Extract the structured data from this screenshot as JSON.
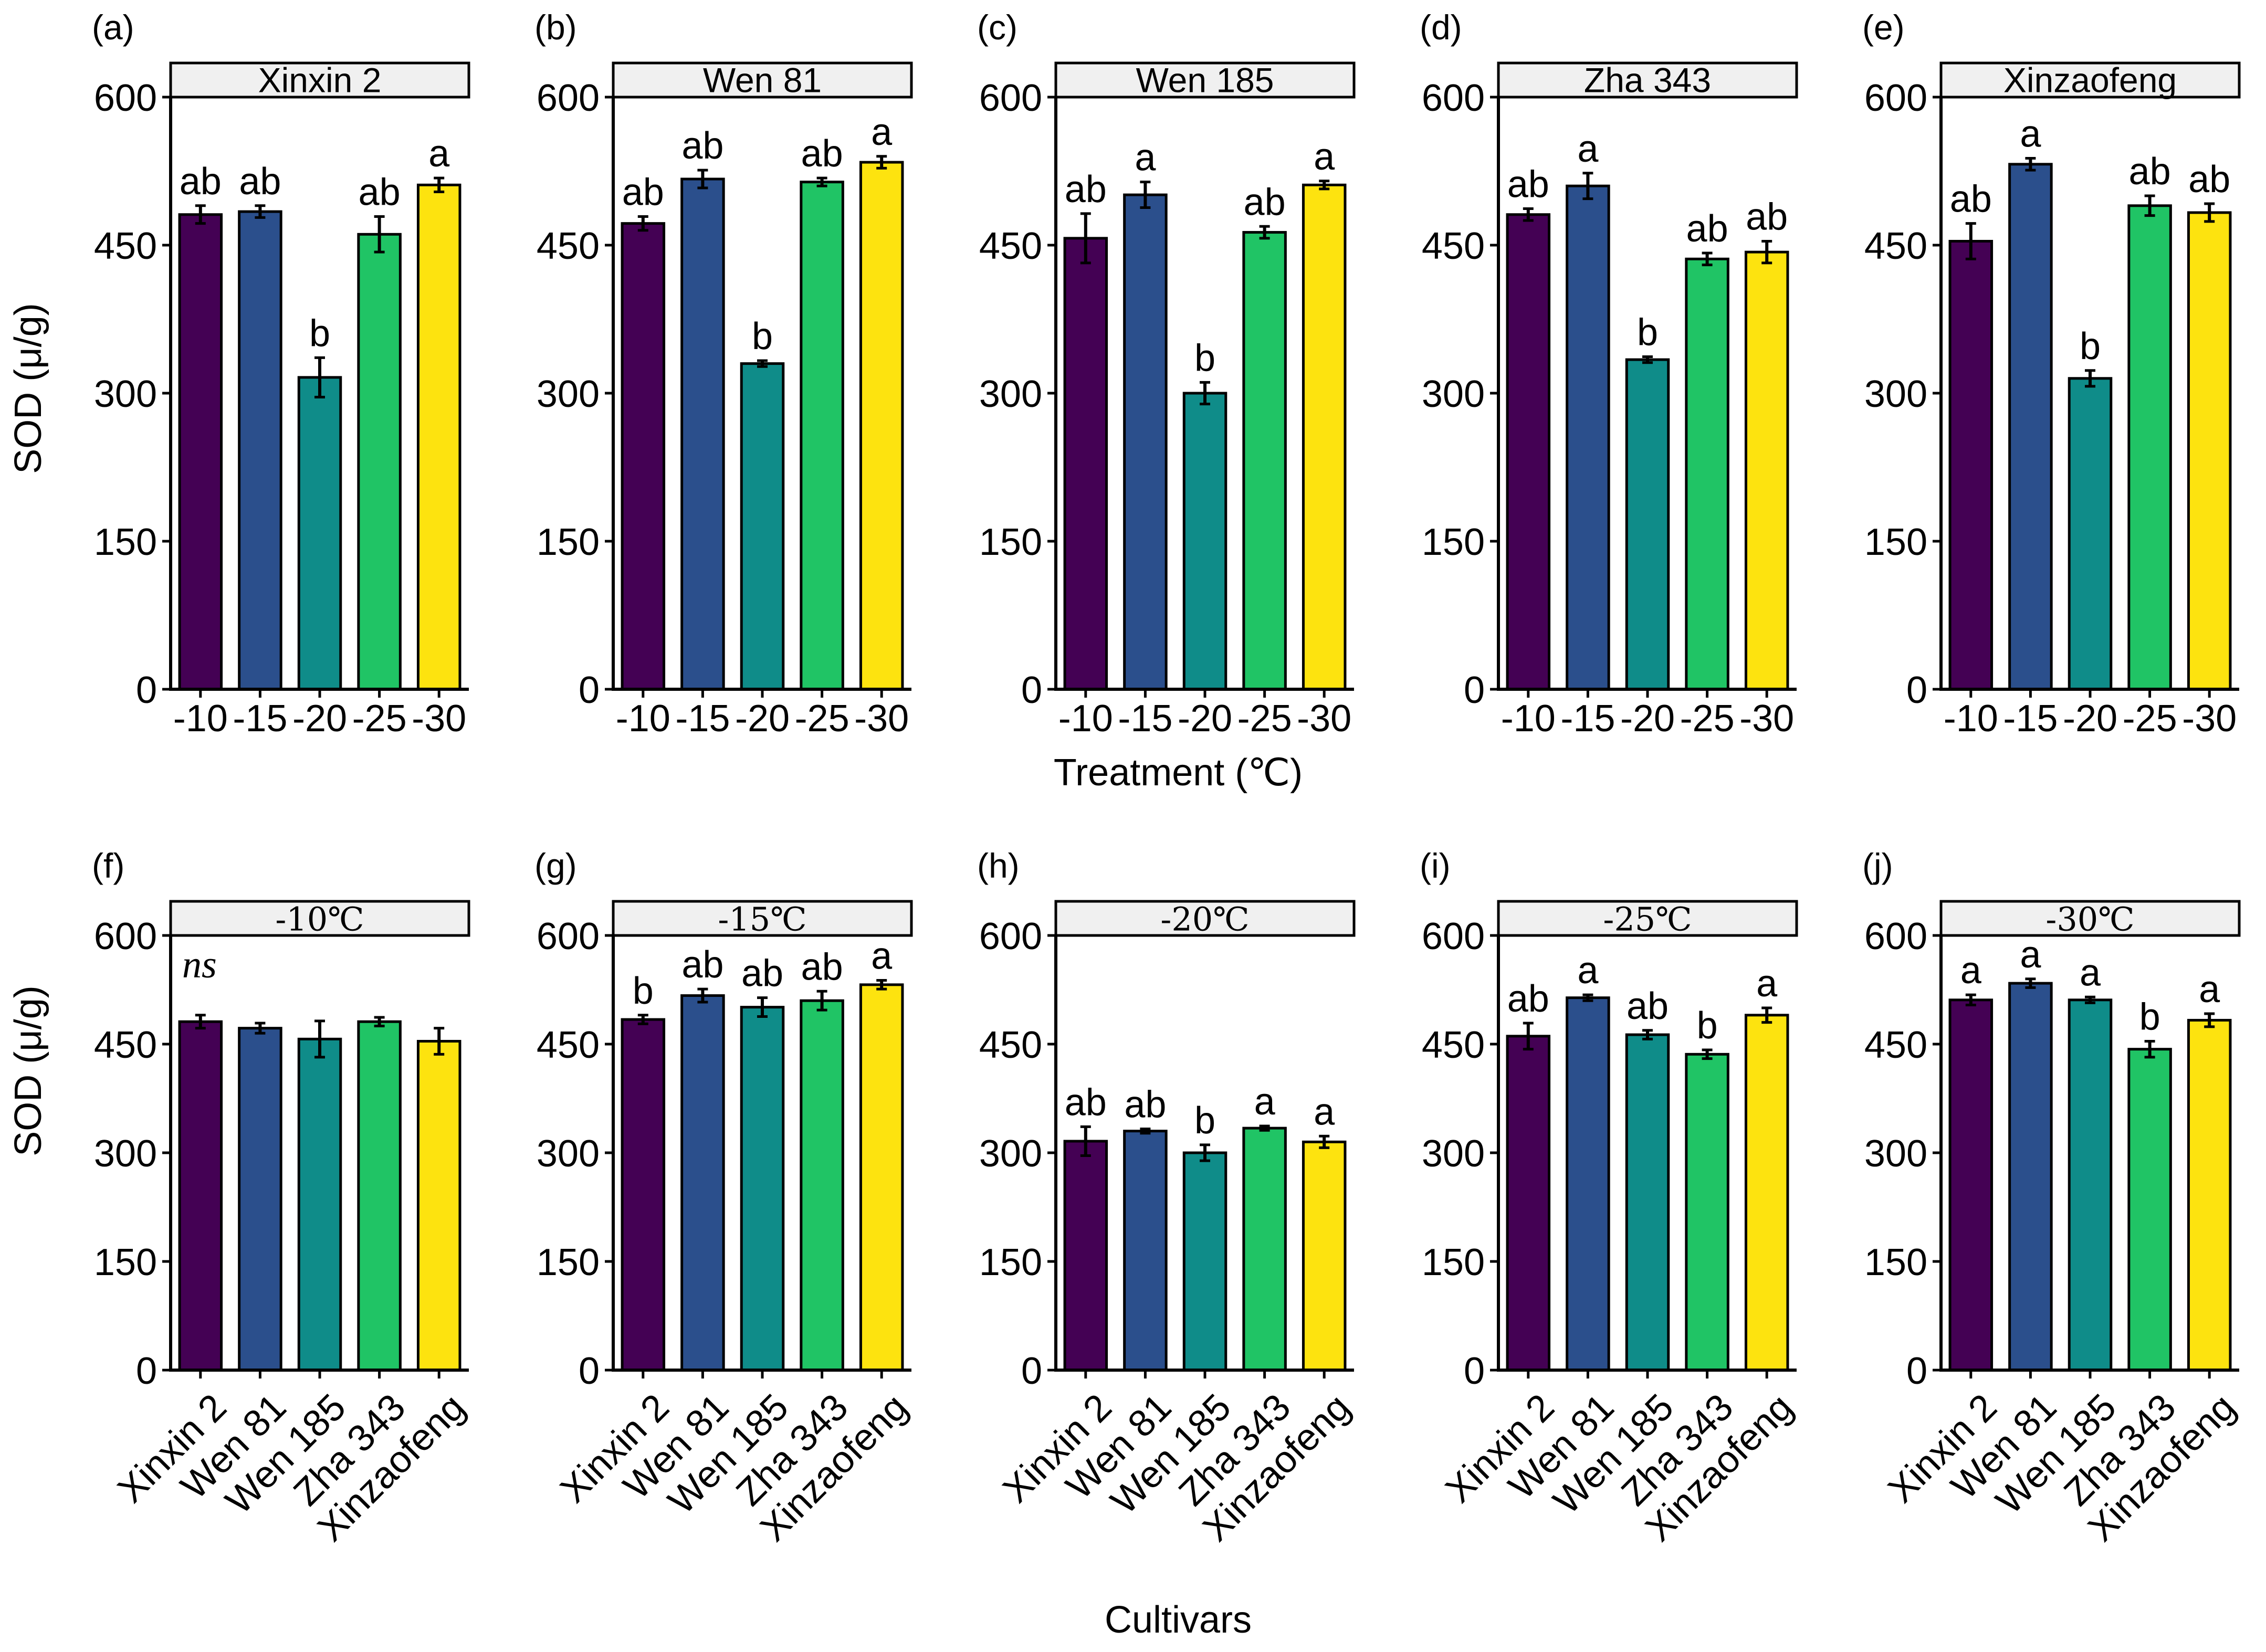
{
  "colors": {
    "c1": "#440154",
    "c2": "#2b4f8c",
    "c3": "#0f8c89",
    "c4": "#20c465",
    "c5": "#fde30f",
    "strip": "#f0f0f0",
    "axis": "#000000"
  },
  "shared": {
    "y_axis_title": "SOD (μ/g)",
    "top_x_title": "Treatment (℃)",
    "bottom_x_title": "Cultivars",
    "yticks": [
      "0",
      "150",
      "300",
      "450",
      "600"
    ]
  },
  "chart_data": [
    {
      "type": "bar",
      "tag": "(a)",
      "strip": "Xinxin 2",
      "categories": [
        "-10",
        "-15",
        "-20",
        "-25",
        "-30"
      ],
      "values": [
        481,
        484,
        316,
        461,
        511
      ],
      "errors": [
        9,
        6,
        20,
        18,
        7
      ],
      "labels": [
        "ab",
        "ab",
        "b",
        "ab",
        "a"
      ],
      "ylim": [
        0,
        600
      ],
      "ylabel": "SOD (μ/g)",
      "xlabel": ""
    },
    {
      "type": "bar",
      "tag": "(b)",
      "strip": "Wen 81",
      "categories": [
        "-10",
        "-15",
        "-20",
        "-25",
        "-30"
      ],
      "values": [
        472,
        517,
        330,
        514,
        534
      ],
      "errors": [
        7,
        9,
        3,
        4,
        6
      ],
      "labels": [
        "ab",
        "ab",
        "b",
        "ab",
        "a"
      ],
      "ylim": [
        0,
        600
      ],
      "ylabel": "",
      "xlabel": ""
    },
    {
      "type": "bar",
      "tag": "(c)",
      "strip": "Wen 185",
      "categories": [
        "-10",
        "-15",
        "-20",
        "-25",
        "-30"
      ],
      "values": [
        457,
        501,
        300,
        463,
        511
      ],
      "errors": [
        25,
        13,
        11,
        6,
        4
      ],
      "labels": [
        "ab",
        "a",
        "b",
        "ab",
        "a"
      ],
      "ylim": [
        0,
        600
      ],
      "ylabel": "",
      "xlabel": "Treatment (℃)"
    },
    {
      "type": "bar",
      "tag": "(d)",
      "strip": "Zha 343",
      "categories": [
        "-10",
        "-15",
        "-20",
        "-25",
        "-30"
      ],
      "values": [
        481,
        510,
        334,
        436,
        443
      ],
      "errors": [
        6,
        13,
        3,
        6,
        11
      ],
      "labels": [
        "ab",
        "a",
        "b",
        "ab",
        "ab"
      ],
      "ylim": [
        0,
        600
      ],
      "ylabel": "",
      "xlabel": ""
    },
    {
      "type": "bar",
      "tag": "(e)",
      "strip": "Xinzaofeng",
      "categories": [
        "-10",
        "-15",
        "-20",
        "-25",
        "-30"
      ],
      "values": [
        454,
        532,
        315,
        490,
        483
      ],
      "errors": [
        18,
        6,
        8,
        10,
        9
      ],
      "labels": [
        "ab",
        "a",
        "b",
        "ab",
        "ab"
      ],
      "ylim": [
        0,
        600
      ],
      "ylabel": "",
      "xlabel": ""
    },
    {
      "type": "bar",
      "tag": "(f)",
      "strip": "-10℃",
      "categories": [
        "Xinxin 2",
        "Wen 81",
        "Wen 185",
        "Zha 343",
        "Xinzaofeng"
      ],
      "values": [
        481,
        472,
        457,
        481,
        454
      ],
      "errors": [
        9,
        7,
        25,
        6,
        18
      ],
      "labels": [
        "",
        "",
        "",
        "",
        ""
      ],
      "annotation": "ns",
      "ylim": [
        0,
        600
      ],
      "ylabel": "SOD (μ/g)",
      "xlabel": ""
    },
    {
      "type": "bar",
      "tag": "(g)",
      "strip": "-15℃",
      "categories": [
        "Xinxin 2",
        "Wen 81",
        "Wen 185",
        "Zha 343",
        "Xinzaofeng"
      ],
      "values": [
        484,
        517,
        501,
        510,
        532
      ],
      "errors": [
        6,
        9,
        13,
        13,
        6
      ],
      "labels": [
        "b",
        "ab",
        "ab",
        "ab",
        "a"
      ],
      "ylim": [
        0,
        600
      ],
      "ylabel": "",
      "xlabel": ""
    },
    {
      "type": "bar",
      "tag": "(h)",
      "strip": "-20℃",
      "categories": [
        "Xinxin 2",
        "Wen 81",
        "Wen 185",
        "Zha 343",
        "Xinzaofeng"
      ],
      "values": [
        316,
        330,
        300,
        334,
        315
      ],
      "errors": [
        20,
        3,
        11,
        3,
        8
      ],
      "labels": [
        "ab",
        "ab",
        "b",
        "a",
        "a"
      ],
      "ylim": [
        0,
        600
      ],
      "ylabel": "",
      "xlabel": "Cultivars"
    },
    {
      "type": "bar",
      "tag": "(i)",
      "strip": "-25℃",
      "categories": [
        "Xinxin 2",
        "Wen 81",
        "Wen 185",
        "Zha 343",
        "Xinzaofeng"
      ],
      "values": [
        461,
        514,
        463,
        436,
        490
      ],
      "errors": [
        18,
        4,
        6,
        6,
        10
      ],
      "labels": [
        "ab",
        "a",
        "ab",
        "b",
        "a"
      ],
      "ylim": [
        0,
        600
      ],
      "ylabel": "",
      "xlabel": ""
    },
    {
      "type": "bar",
      "tag": "(j)",
      "strip": "-30℃",
      "categories": [
        "Xinxin 2",
        "Wen 81",
        "Wen 185",
        "Zha 343",
        "Xinzaofeng"
      ],
      "values": [
        511,
        534,
        511,
        443,
        483
      ],
      "errors": [
        7,
        6,
        4,
        11,
        9
      ],
      "labels": [
        "a",
        "a",
        "a",
        "b",
        "a"
      ],
      "ylim": [
        0,
        600
      ],
      "ylabel": "",
      "xlabel": ""
    }
  ]
}
